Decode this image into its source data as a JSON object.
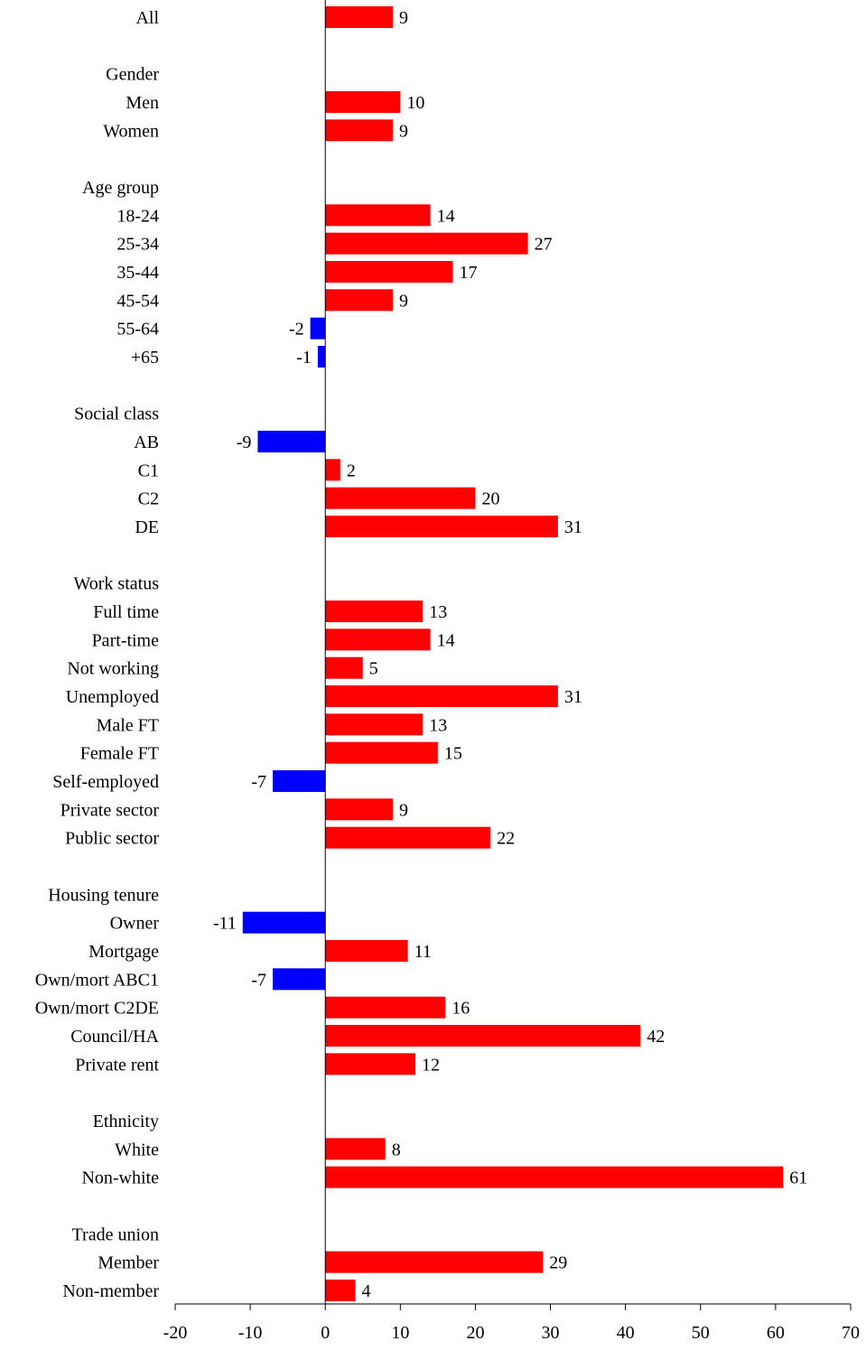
{
  "chart_data": {
    "type": "bar",
    "orientation": "horizontal",
    "title": "",
    "xlabel": "",
    "ylabel": "",
    "xlim": [
      -20,
      70
    ],
    "xticks": [
      -20,
      -10,
      0,
      10,
      20,
      30,
      40,
      50,
      60,
      70
    ],
    "grid": false,
    "legend": "none",
    "colors": {
      "positive": "#ff0000",
      "negative": "#0000ff",
      "axis": "#000000"
    },
    "rows": [
      {
        "label": "All",
        "value": 9
      },
      {
        "label": "",
        "value": null
      },
      {
        "label": "Gender",
        "value": null
      },
      {
        "label": "Men",
        "value": 10
      },
      {
        "label": "Women",
        "value": 9
      },
      {
        "label": "",
        "value": null
      },
      {
        "label": "Age group",
        "value": null
      },
      {
        "label": "18-24",
        "value": 14
      },
      {
        "label": "25-34",
        "value": 27
      },
      {
        "label": "35-44",
        "value": 17
      },
      {
        "label": "45-54",
        "value": 9
      },
      {
        "label": "55-64",
        "value": -2
      },
      {
        "label": "+65",
        "value": -1
      },
      {
        "label": "",
        "value": null
      },
      {
        "label": "Social class",
        "value": null
      },
      {
        "label": "AB",
        "value": -9
      },
      {
        "label": "C1",
        "value": 2
      },
      {
        "label": "C2",
        "value": 20
      },
      {
        "label": "DE",
        "value": 31
      },
      {
        "label": "",
        "value": null
      },
      {
        "label": "Work status",
        "value": null
      },
      {
        "label": "Full time",
        "value": 13
      },
      {
        "label": "Part-time",
        "value": 14
      },
      {
        "label": "Not working",
        "value": 5
      },
      {
        "label": "Unemployed",
        "value": 31
      },
      {
        "label": "Male FT",
        "value": 13
      },
      {
        "label": "Female FT",
        "value": 15
      },
      {
        "label": "Self-employed",
        "value": -7
      },
      {
        "label": "Private sector",
        "value": 9
      },
      {
        "label": "Public sector",
        "value": 22
      },
      {
        "label": "",
        "value": null
      },
      {
        "label": "Housing tenure",
        "value": null
      },
      {
        "label": "Owner",
        "value": -11
      },
      {
        "label": "Mortgage",
        "value": 11
      },
      {
        "label": "Own/mort ABC1",
        "value": -7
      },
      {
        "label": "Own/mort C2DE",
        "value": 16
      },
      {
        "label": "Council/HA",
        "value": 42
      },
      {
        "label": "Private rent",
        "value": 12
      },
      {
        "label": "",
        "value": null
      },
      {
        "label": "Ethnicity",
        "value": null
      },
      {
        "label": "White",
        "value": 8
      },
      {
        "label": "Non-white",
        "value": 61
      },
      {
        "label": "",
        "value": null
      },
      {
        "label": "Trade union",
        "value": null
      },
      {
        "label": "Member",
        "value": 29
      },
      {
        "label": "Non-member",
        "value": 4
      }
    ]
  }
}
